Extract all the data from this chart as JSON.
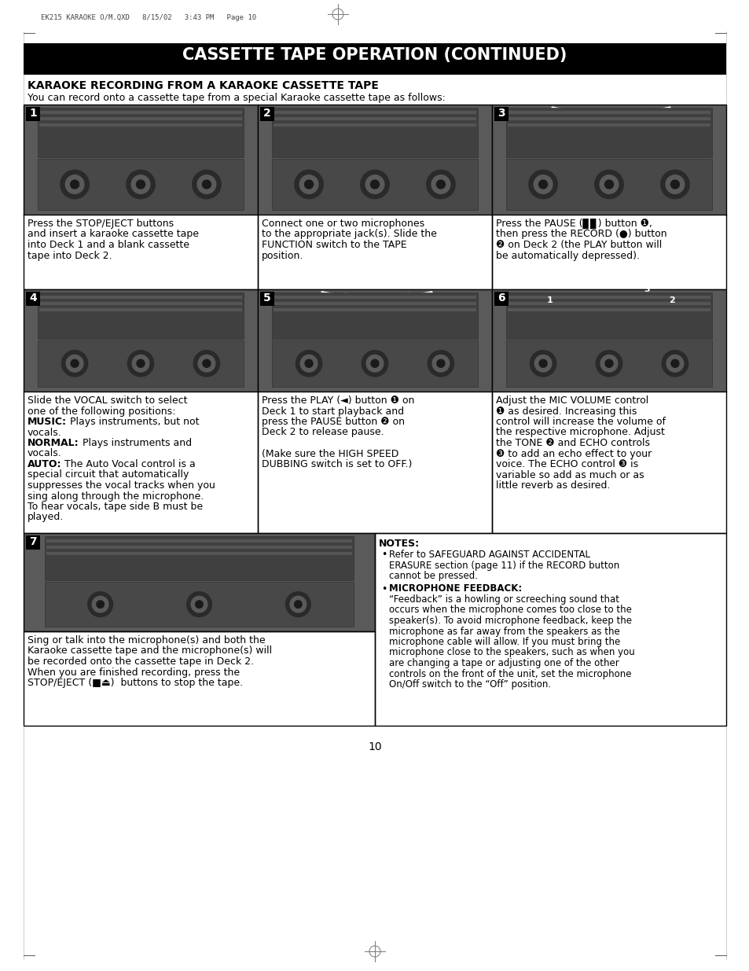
{
  "header_text": "EK215 KARAOKE O/M.QXD   8/15/02   3:43 PM   Page 10",
  "title": "CASSETTE TAPE OPERATION (CONTINUED)",
  "subtitle": "KARAOKE RECORDING FROM A KARAOKE CASSETTE TAPE",
  "subtitle2": "You can record onto a cassette tape from a special Karaoke cassette tape as follows:",
  "step1_text": [
    "Press the STOP/EJECT buttons",
    "and insert a karaoke cassette tape",
    "into Deck 1 and a blank cassette",
    "tape into Deck 2."
  ],
  "step2_text": [
    "Connect one or two microphones",
    "to the appropriate jack(s). Slide the",
    "FUNCTION switch to the TAPE",
    "position."
  ],
  "step3_text": [
    "Press the PAUSE (▊▊) button ❶,",
    "then press the RECORD (●) button",
    "❷ on Deck 2 (the PLAY button will",
    "be automatically depressed)."
  ],
  "step4_line1": "Slide the VOCAL switch to select",
  "step4_line2": "one of the following positions:",
  "step4_music_bold": "MUSIC:",
  "step4_music_rest": " Plays instruments, but not",
  "step4_music_rest2": "vocals.",
  "step4_normal_bold": "NORMAL:",
  "step4_normal_rest": " Plays instruments and",
  "step4_normal_rest2": "vocals.",
  "step4_auto_bold": "AUTO:",
  "step4_auto_rest": " The Auto Vocal control is a",
  "step4_auto_lines": [
    "special circuit that automatically",
    "suppresses the vocal tracks when you",
    "sing along through the microphone.",
    "To hear vocals, tape side B must be",
    "played."
  ],
  "step5_text": [
    "Press the PLAY (◄) button ❶ on",
    "Deck 1 to start playback and",
    "press the PAUSE button ❷ on",
    "Deck 2 to release pause.",
    "",
    "(Make sure the HIGH SPEED",
    "DUBBING switch is set to OFF.)"
  ],
  "step6_text": [
    "Adjust the MIC VOLUME control",
    "❶ as desired. Increasing this",
    "control will increase the volume of",
    "the respective microphone. Adjust",
    "the TONE ❷ and ECHO controls",
    "❸ to add an echo effect to your",
    "voice. The ECHO control ❸ is",
    "variable so add as much or as",
    "little reverb as desired."
  ],
  "step7_text": [
    "Sing or talk into the microphone(s) and both the",
    "Karaoke cassette tape and the microphone(s) will",
    "be recorded onto the cassette tape in Deck 2.",
    "When you are finished recording, press the",
    "STOP/EJECT (■⏏)  buttons to stop the tape."
  ],
  "notes_title": "NOTES:",
  "note1_bullet": "Refer to SAFEGUARD AGAINST ACCIDENTAL",
  "note1_lines": [
    "ERASURE section (page 11) if the RECORD button",
    "cannot be pressed."
  ],
  "note2_bold": "MICROPHONE FEEDBACK:",
  "note2_lines": [
    "“Feedback” is a howling or screeching sound that",
    "occurs when the microphone comes too close to the",
    "speaker(s). To avoid microphone feedback, keep the",
    "microphone as far away from the speakers as the",
    "microphone cable will allow. If you must bring the",
    "microphone close to the speakers, such as when you",
    "are changing a tape or adjusting one of the other",
    "controls on the front of the unit, set the microphone",
    "On/Off switch to the “Off” position."
  ],
  "page_number": "10",
  "bg_color": "#ffffff",
  "title_bg": "#000000",
  "title_fg": "#ffffff"
}
